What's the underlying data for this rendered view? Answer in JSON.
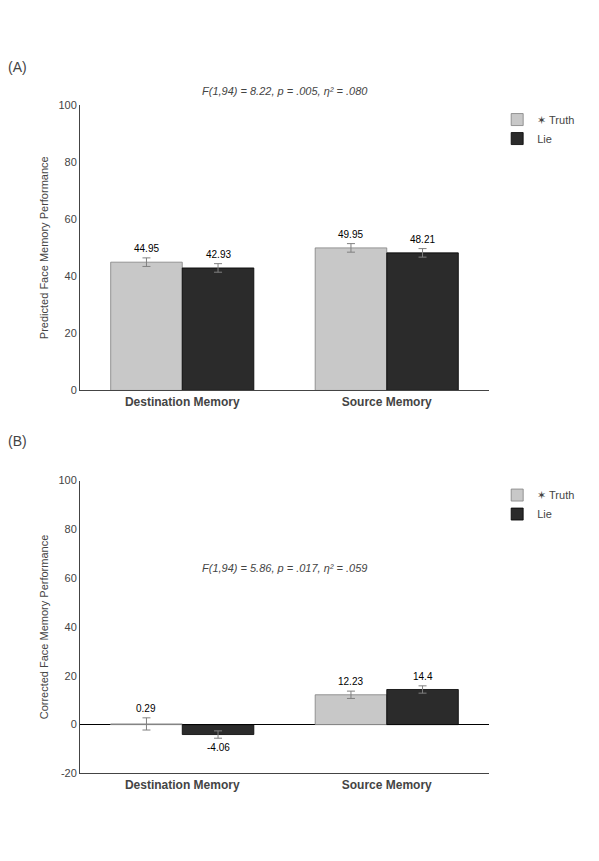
{
  "chart_data": [
    {
      "type": "bar",
      "title": "(A)",
      "ylabel": "Predicted Face Memory Performance",
      "categories": [
        "Destination Memory",
        "Source Memory"
      ],
      "series": [
        {
          "name": "✶ Truth",
          "color": "#c8c8c8",
          "values": [
            44.95,
            49.95
          ],
          "errors": [
            1.5,
            1.5
          ]
        },
        {
          "name": "Lie",
          "color": "#2b2b2b",
          "values": [
            42.93,
            48.21
          ],
          "errors": [
            1.5,
            1.5
          ]
        }
      ],
      "ylim": [
        0,
        100
      ],
      "yticks": [
        0,
        20,
        40,
        60,
        80,
        100
      ],
      "annotations": [
        "F(1,94) = 8.22, p = .005, η² = .080"
      ],
      "data_labels": true,
      "grid": false,
      "legend": "upper right"
    },
    {
      "type": "bar",
      "title": "(B)",
      "ylabel": "Corrected Face Memory Performance",
      "categories": [
        "Destination Memory",
        "Source Memory"
      ],
      "series": [
        {
          "name": "✶ Truth",
          "color": "#c8c8c8",
          "values": [
            0.29,
            12.23
          ],
          "errors": [
            2.5,
            1.5
          ]
        },
        {
          "name": "Lie",
          "color": "#2b2b2b",
          "values": [
            -4.06,
            14.4
          ],
          "errors": [
            1.5,
            1.5
          ]
        }
      ],
      "ylim": [
        -20,
        100
      ],
      "yticks": [
        -20,
        0,
        20,
        40,
        60,
        80,
        100
      ],
      "annotations": [
        "F(1,94) = 5.86, p = .017, η² = .059"
      ],
      "data_labels": true,
      "grid": false,
      "legend": "upper right"
    }
  ]
}
